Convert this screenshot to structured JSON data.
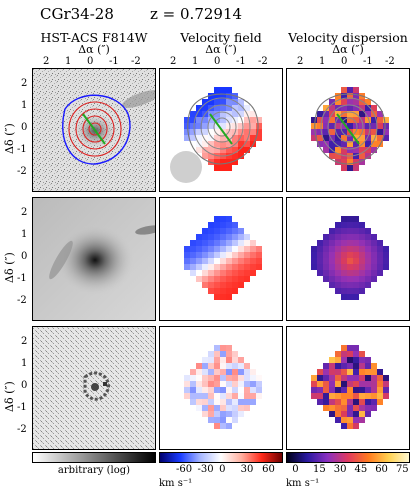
{
  "header": {
    "object": "CGr34-28",
    "redshift": "z = 0.72914"
  },
  "columns": [
    {
      "title": "HST-ACS F814W",
      "xlabel": "Δα (″)"
    },
    {
      "title": "Velocity field",
      "xlabel": "Δα (″)"
    },
    {
      "title": "Velocity dispersion",
      "xlabel": "Δα (″)"
    }
  ],
  "axes": {
    "xticks": [
      "2",
      "1",
      "0",
      "-1",
      "-2"
    ],
    "yticks": [
      "2",
      "1",
      "0",
      "-1",
      "-2"
    ],
    "ylabel": "Δδ (″)"
  },
  "colorbars": [
    {
      "label": "arbitrary (log)",
      "ticks": [],
      "unit": ""
    },
    {
      "label": "",
      "ticks": [
        "-60",
        "-30",
        "0",
        "30",
        "60"
      ],
      "unit": "km s⁻¹"
    },
    {
      "label": "",
      "ticks": [
        "0",
        "15",
        "30",
        "45",
        "60",
        "75"
      ],
      "unit": "km s⁻¹"
    }
  ]
}
